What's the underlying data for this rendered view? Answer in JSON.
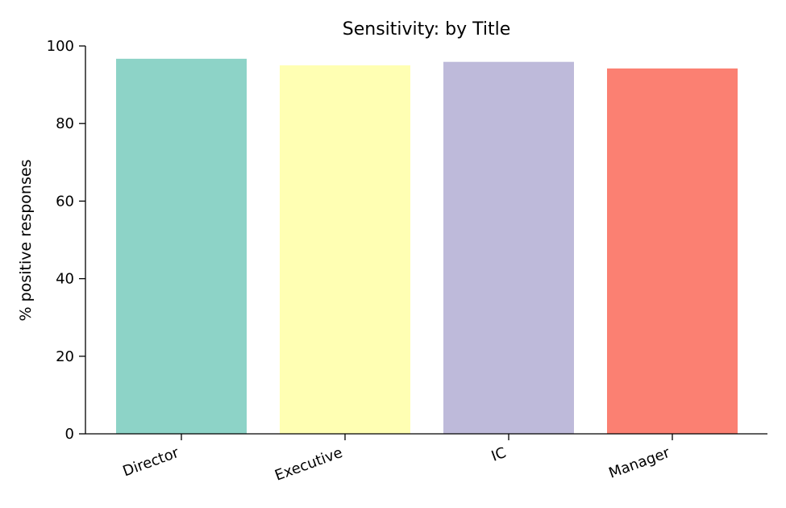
{
  "chart_data": {
    "type": "bar",
    "title": "Sensitivity: by Title",
    "xlabel": "",
    "ylabel": "% positive responses",
    "ylim": [
      0,
      100
    ],
    "yticks": [
      "0",
      "20",
      "40",
      "60",
      "80",
      "100"
    ],
    "categories": [
      "Director",
      "Executive",
      "IC",
      "Manager"
    ],
    "values": [
      96.7,
      95.0,
      95.9,
      94.2
    ],
    "colors": [
      "#8dd3c7",
      "#ffffb3",
      "#bebada",
      "#fb8072"
    ],
    "grid": false,
    "legend": "none"
  }
}
